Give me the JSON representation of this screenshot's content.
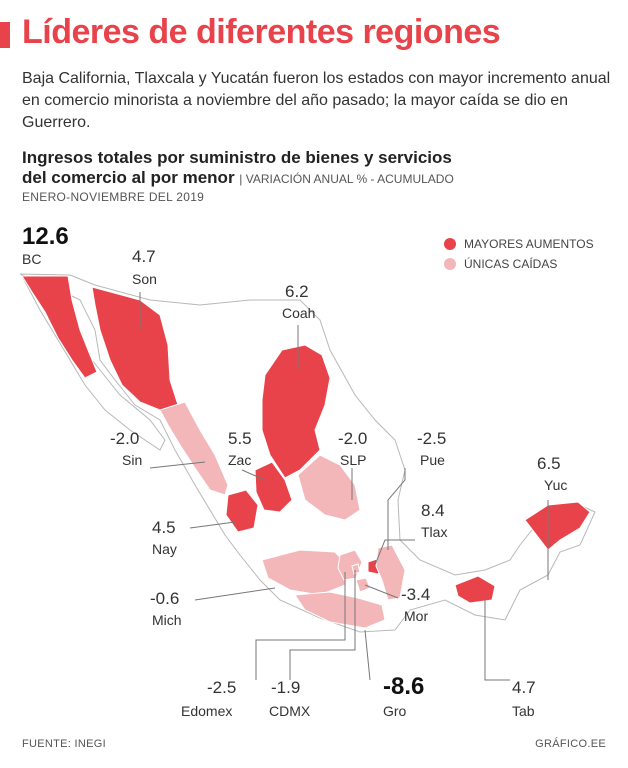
{
  "title": "Líderes de diferentes regiones",
  "intro": "Baja California, Tlaxcala y Yucatán fueron los estados con mayor incremento anual en comercio minorista a noviembre del año pasado; la mayor caída se dio en Guerrero.",
  "chart_title_line1": "Ingresos totales por suministro de bienes y servicios",
  "chart_title_line2": "del comercio al por menor",
  "chart_unit": "| VARIACIÓN ANUAL % - ACUMULADO",
  "period": "ENERO-NOVIEMBRE DEL 2019",
  "legend": {
    "increase_label": "MAYORES AUMENTOS",
    "decrease_label": "ÚNICAS CAÍDAS",
    "increase_color": "#e8434a",
    "decrease_color": "#f3b7b9"
  },
  "chart_data": {
    "type": "choropleth",
    "unit": "variación anual %",
    "regions": [
      {
        "abbr": "BC",
        "value": "12.6",
        "category": "increase"
      },
      {
        "abbr": "Son",
        "value": "4.7",
        "category": "increase"
      },
      {
        "abbr": "Coah",
        "value": "6.2",
        "category": "increase"
      },
      {
        "abbr": "Sin",
        "value": "-2.0",
        "category": "decrease"
      },
      {
        "abbr": "Zac",
        "value": "5.5",
        "category": "increase"
      },
      {
        "abbr": "SLP",
        "value": "-2.0",
        "category": "decrease"
      },
      {
        "abbr": "Pue",
        "value": "-2.5",
        "category": "decrease"
      },
      {
        "abbr": "Yuc",
        "value": "6.5",
        "category": "increase"
      },
      {
        "abbr": "Nay",
        "value": "4.5",
        "category": "increase"
      },
      {
        "abbr": "Tlax",
        "value": "8.4",
        "category": "increase"
      },
      {
        "abbr": "Mich",
        "value": "-0.6",
        "category": "decrease"
      },
      {
        "abbr": "Mor",
        "value": "-3.4",
        "category": "decrease"
      },
      {
        "abbr": "Edomex",
        "value": "-2.5",
        "category": "decrease"
      },
      {
        "abbr": "CDMX",
        "value": "-1.9",
        "category": "decrease"
      },
      {
        "abbr": "Gro",
        "value": "-8.6",
        "category": "decrease"
      },
      {
        "abbr": "Tab",
        "value": "4.7",
        "category": "increase"
      }
    ]
  },
  "footer": {
    "source": "FUENTE: INEGI",
    "credit": "GRÁFICO.EE"
  }
}
